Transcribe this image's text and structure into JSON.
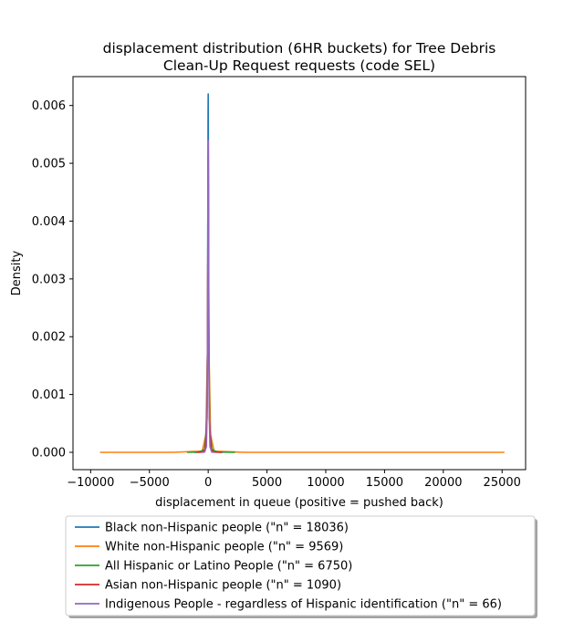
{
  "chart_data": {
    "type": "line",
    "title": "displacement distribution (6HR buckets) for Tree Debris\nClean-Up Request requests (code SEL)",
    "xlabel": "displacement in queue (positive = pushed back)",
    "ylabel": "Density",
    "xlim": [
      -11500,
      27000
    ],
    "ylim": [
      -0.0003,
      0.0065
    ],
    "xticks": [
      -10000,
      -5000,
      0,
      5000,
      10000,
      15000,
      20000,
      25000
    ],
    "xtick_labels": [
      "−10000",
      "−5000",
      "0",
      "5000",
      "10000",
      "15000",
      "20000",
      "25000"
    ],
    "yticks": [
      0.0,
      0.001,
      0.002,
      0.003,
      0.004,
      0.005,
      0.006
    ],
    "ytick_labels": [
      "0.000",
      "0.001",
      "0.002",
      "0.003",
      "0.004",
      "0.005",
      "0.006"
    ],
    "grid": false,
    "legend_position": "below",
    "series": [
      {
        "name": "Black non-Hispanic people (\"n\" = 18036)",
        "color": "#1f77b4",
        "x": [
          -1200,
          -600,
          -300,
          -150,
          -60,
          -30,
          -10,
          0,
          10,
          30,
          60,
          150,
          300,
          600,
          1200
        ],
        "y": [
          0,
          5e-06,
          4e-05,
          0.0004,
          0.0018,
          0.0042,
          0.0058,
          0.0062,
          0.0058,
          0.0042,
          0.0018,
          0.0004,
          4e-05,
          5e-06,
          0
        ]
      },
      {
        "name": "White non-Hispanic people (\"n\" = 9569)",
        "color": "#ff7f0e",
        "x": [
          -9200,
          -3000,
          -500,
          -200,
          -60,
          -20,
          0,
          20,
          60,
          200,
          500,
          3000,
          25200
        ],
        "y": [
          0,
          0,
          2e-05,
          0.0003,
          0.0018,
          0.004,
          0.0045,
          0.004,
          0.0018,
          0.0003,
          2e-05,
          0,
          0
        ]
      },
      {
        "name": "All Hispanic or Latino People (\"n\" = 6750)",
        "color": "#2ca02c",
        "x": [
          -1800,
          -800,
          -300,
          -120,
          -40,
          -10,
          0,
          10,
          40,
          120,
          300,
          800,
          2300
        ],
        "y": [
          0,
          5e-06,
          5e-05,
          0.0005,
          0.0022,
          0.0045,
          0.005,
          0.0045,
          0.0022,
          0.0005,
          5e-05,
          5e-06,
          0
        ]
      },
      {
        "name": "Asian non-Hispanic people (\"n\" = 1090)",
        "color": "#d62728",
        "x": [
          -1000,
          -500,
          -250,
          -100,
          -40,
          -10,
          0,
          10,
          40,
          100,
          250,
          500,
          1200
        ],
        "y": [
          0,
          5e-06,
          5e-05,
          0.0006,
          0.0025,
          0.0046,
          0.0051,
          0.0046,
          0.0025,
          0.0006,
          5e-05,
          5e-06,
          0
        ]
      },
      {
        "name": "Indigenous People - regardless of Hispanic identification (\"n\" = 66)",
        "color": "#9467bd",
        "x": [
          -500,
          -300,
          -150,
          -80,
          -40,
          -15,
          0,
          15,
          40,
          80,
          150,
          300,
          500
        ],
        "y": [
          0,
          5e-06,
          0.0001,
          0.0008,
          0.003,
          0.005,
          0.0054,
          0.005,
          0.003,
          0.0008,
          0.0001,
          5e-06,
          0
        ]
      }
    ]
  }
}
